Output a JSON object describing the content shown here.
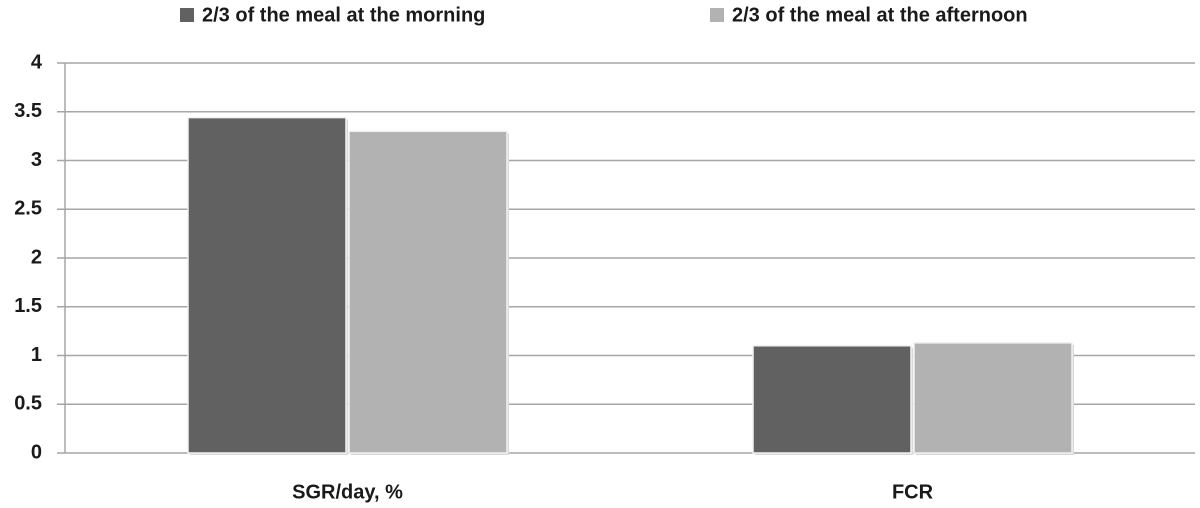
{
  "chart_data": {
    "type": "bar",
    "categories": [
      "SGR/day, %",
      "FCR"
    ],
    "series": [
      {
        "name": "2/3 of the meal at the morning",
        "color": "#616161",
        "values": [
          3.44,
          1.1
        ]
      },
      {
        "name": "2/3 of the meal at the afternoon",
        "color": "#b2b2b2",
        "values": [
          3.3,
          1.13
        ]
      }
    ],
    "ylim": [
      0,
      4
    ],
    "yticks": [
      0,
      0.5,
      1,
      1.5,
      2,
      2.5,
      3,
      3.5,
      4
    ],
    "grid": true,
    "legend": "top"
  }
}
